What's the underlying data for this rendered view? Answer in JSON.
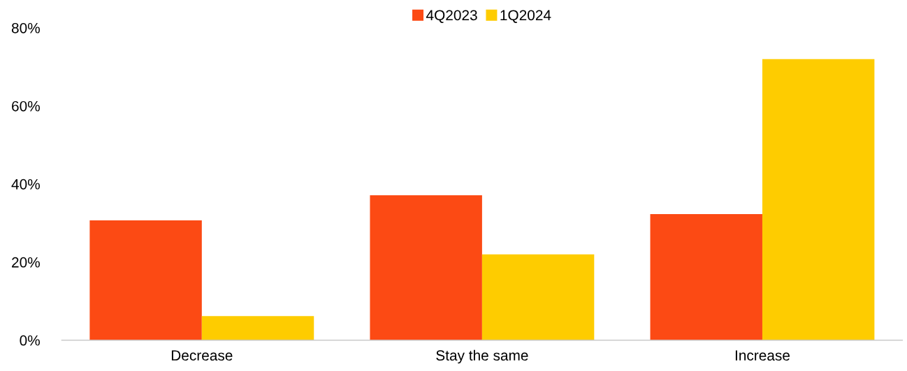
{
  "chart_data": {
    "type": "bar",
    "categories": [
      "Decrease",
      "Stay the same",
      "Increase"
    ],
    "series": [
      {
        "name": "4Q2023",
        "color": "#fc4a14",
        "values": [
          30.7,
          37.1,
          32.3
        ]
      },
      {
        "name": "1Q2024",
        "color": "#fecc00",
        "values": [
          6.2,
          22.0,
          72.0
        ]
      }
    ],
    "ylim": [
      0,
      80
    ],
    "yticks": [
      {
        "value": 0,
        "label": "0%"
      },
      {
        "value": 20,
        "label": "20%"
      },
      {
        "value": 40,
        "label": "40%"
      },
      {
        "value": 60,
        "label": "60%"
      },
      {
        "value": 80,
        "label": "80%"
      }
    ],
    "grid": false,
    "legend": "top"
  }
}
